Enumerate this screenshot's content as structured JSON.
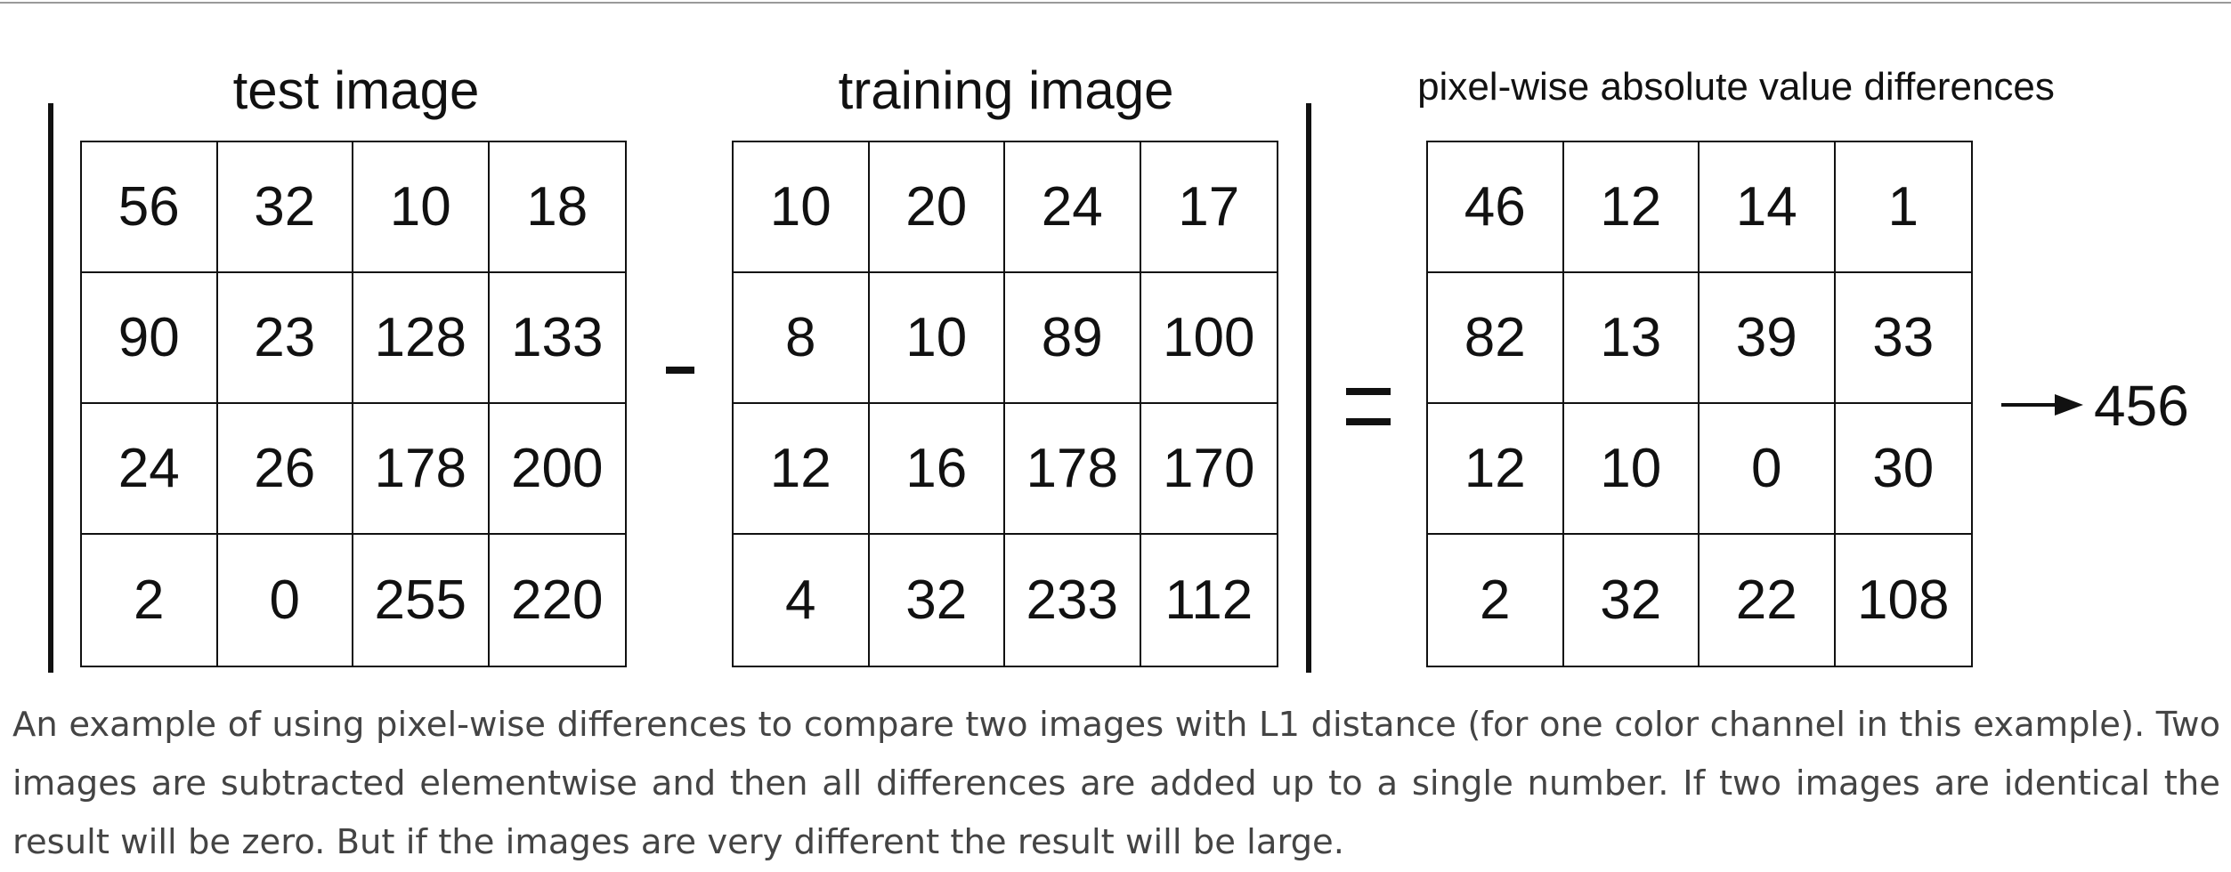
{
  "titles": {
    "test": "test image",
    "training": "training image",
    "diff": "pixel-wise absolute value differences"
  },
  "matrices": {
    "test": [
      [
        56,
        32,
        10,
        18
      ],
      [
        90,
        23,
        128,
        133
      ],
      [
        24,
        26,
        178,
        200
      ],
      [
        2,
        0,
        255,
        220
      ]
    ],
    "training": [
      [
        10,
        20,
        24,
        17
      ],
      [
        8,
        10,
        89,
        100
      ],
      [
        12,
        16,
        178,
        170
      ],
      [
        4,
        32,
        233,
        112
      ]
    ],
    "diff": [
      [
        46,
        12,
        14,
        1
      ],
      [
        82,
        13,
        39,
        33
      ],
      [
        12,
        10,
        0,
        30
      ],
      [
        2,
        32,
        22,
        108
      ]
    ]
  },
  "operators": {
    "minus": "-",
    "equals": "="
  },
  "arrow_icon": "right-arrow-icon",
  "result": "456",
  "caption": "An example of using pixel-wise differences to compare two images with L1 distance (for one color channel in this example). Two images are subtracted elementwise and then all differences are added up to a single number. If two images are identical the result will be zero. But if the images are very different the result will be large."
}
